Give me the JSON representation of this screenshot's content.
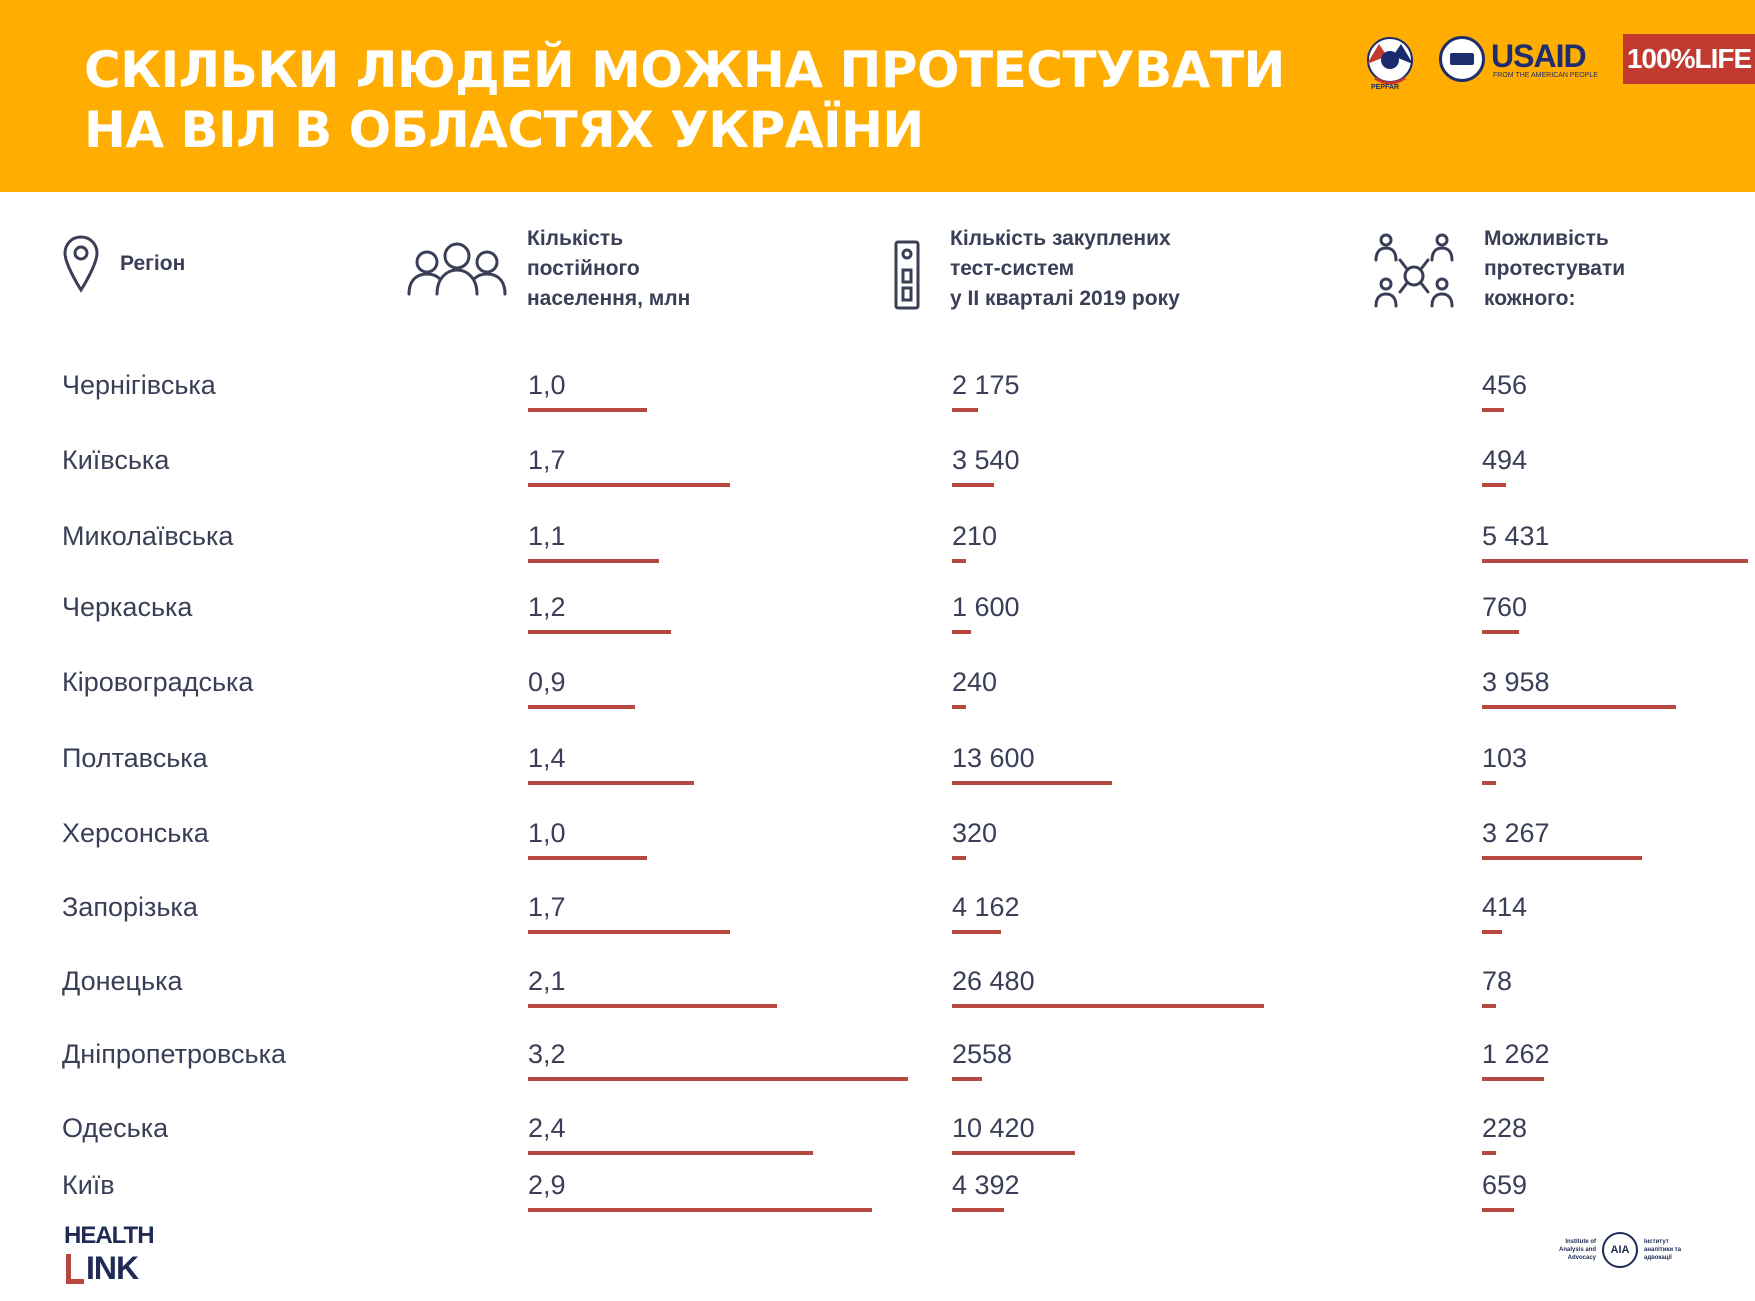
{
  "header": {
    "title_line1": "СКІЛЬКИ ЛЮДЕЙ МОЖНА ПРОТЕСТУВАТИ",
    "title_line2": "НА ВІЛ В ОБЛАСТЯХ УКРАЇНИ",
    "logos": {
      "pepfar": "PEPFAR",
      "usaid": "USAID",
      "usaid_sub": "FROM THE AMERICAN PEOPLE",
      "life": "100%LIFE"
    }
  },
  "columns": {
    "region": {
      "label": "Регіон",
      "icon": "location-pin-icon"
    },
    "population": {
      "lines": [
        "Кількість",
        "постійного",
        "населення, млн"
      ],
      "icon": "people-group-icon"
    },
    "tests": {
      "lines": [
        "Кількість закуплених",
        "тест-систем",
        "у ІІ кварталі 2019 року"
      ],
      "icon": "test-strip-icon"
    },
    "per_test": {
      "lines": [
        "Можливість",
        "протестувати",
        "кожного:"
      ],
      "icon": "people-network-icon"
    }
  },
  "chart_data": {
    "type": "table",
    "bar_color": "#b8473f",
    "rows": [
      {
        "region": "Чернігівська",
        "population": 1.0,
        "population_label": "1,0",
        "tests": 2175,
        "tests_label": "2 175",
        "per_test": 456,
        "per_test_label": "456"
      },
      {
        "region": "Київська",
        "population": 1.7,
        "population_label": "1,7",
        "tests": 3540,
        "tests_label": "3 540",
        "per_test": 494,
        "per_test_label": "494"
      },
      {
        "region": "Миколаївська",
        "population": 1.1,
        "population_label": "1,1",
        "tests": 210,
        "tests_label": "210",
        "per_test": 5431,
        "per_test_label": "5 431"
      },
      {
        "region": "Черкаська",
        "population": 1.2,
        "population_label": "1,2",
        "tests": 1600,
        "tests_label": "1 600",
        "per_test": 760,
        "per_test_label": "760"
      },
      {
        "region": "Кіровоградська",
        "population": 0.9,
        "population_label": "0,9",
        "tests": 240,
        "tests_label": "240",
        "per_test": 3958,
        "per_test_label": "3 958"
      },
      {
        "region": "Полтавська",
        "population": 1.4,
        "population_label": "1,4",
        "tests": 13600,
        "tests_label": "13 600",
        "per_test": 103,
        "per_test_label": "103"
      },
      {
        "region": "Херсонська",
        "population": 1.0,
        "population_label": "1,0",
        "tests": 320,
        "tests_label": "320",
        "per_test": 3267,
        "per_test_label": "3 267"
      },
      {
        "region": "Запорізька",
        "population": 1.7,
        "population_label": "1,7",
        "tests": 4162,
        "tests_label": "4 162",
        "per_test": 414,
        "per_test_label": "414"
      },
      {
        "region": "Донецька",
        "population": 2.1,
        "population_label": "2,1",
        "tests": 26480,
        "tests_label": "26 480",
        "per_test": 78,
        "per_test_label": "78"
      },
      {
        "region": "Дніпропетровська",
        "population": 3.2,
        "population_label": "3,2",
        "tests": 2558,
        "tests_label": "2558",
        "per_test": 1262,
        "per_test_label": "1 262"
      },
      {
        "region": "Одеська",
        "population": 2.4,
        "population_label": "2,4",
        "tests": 10420,
        "tests_label": "10 420",
        "per_test": 228,
        "per_test_label": "228"
      },
      {
        "region": "Київ",
        "population": 2.9,
        "population_label": "2,9",
        "tests": 4392,
        "tests_label": "4 392",
        "per_test": 659,
        "per_test_label": "659"
      }
    ]
  },
  "footer": {
    "left_logo_line1": "HEALTH",
    "left_logo_line2": "INK",
    "right_logo_left": "Institute of Analysis and Advocacy",
    "right_logo_mark": "AIA",
    "right_logo_right": "Інститут аналітики та адвокації"
  }
}
